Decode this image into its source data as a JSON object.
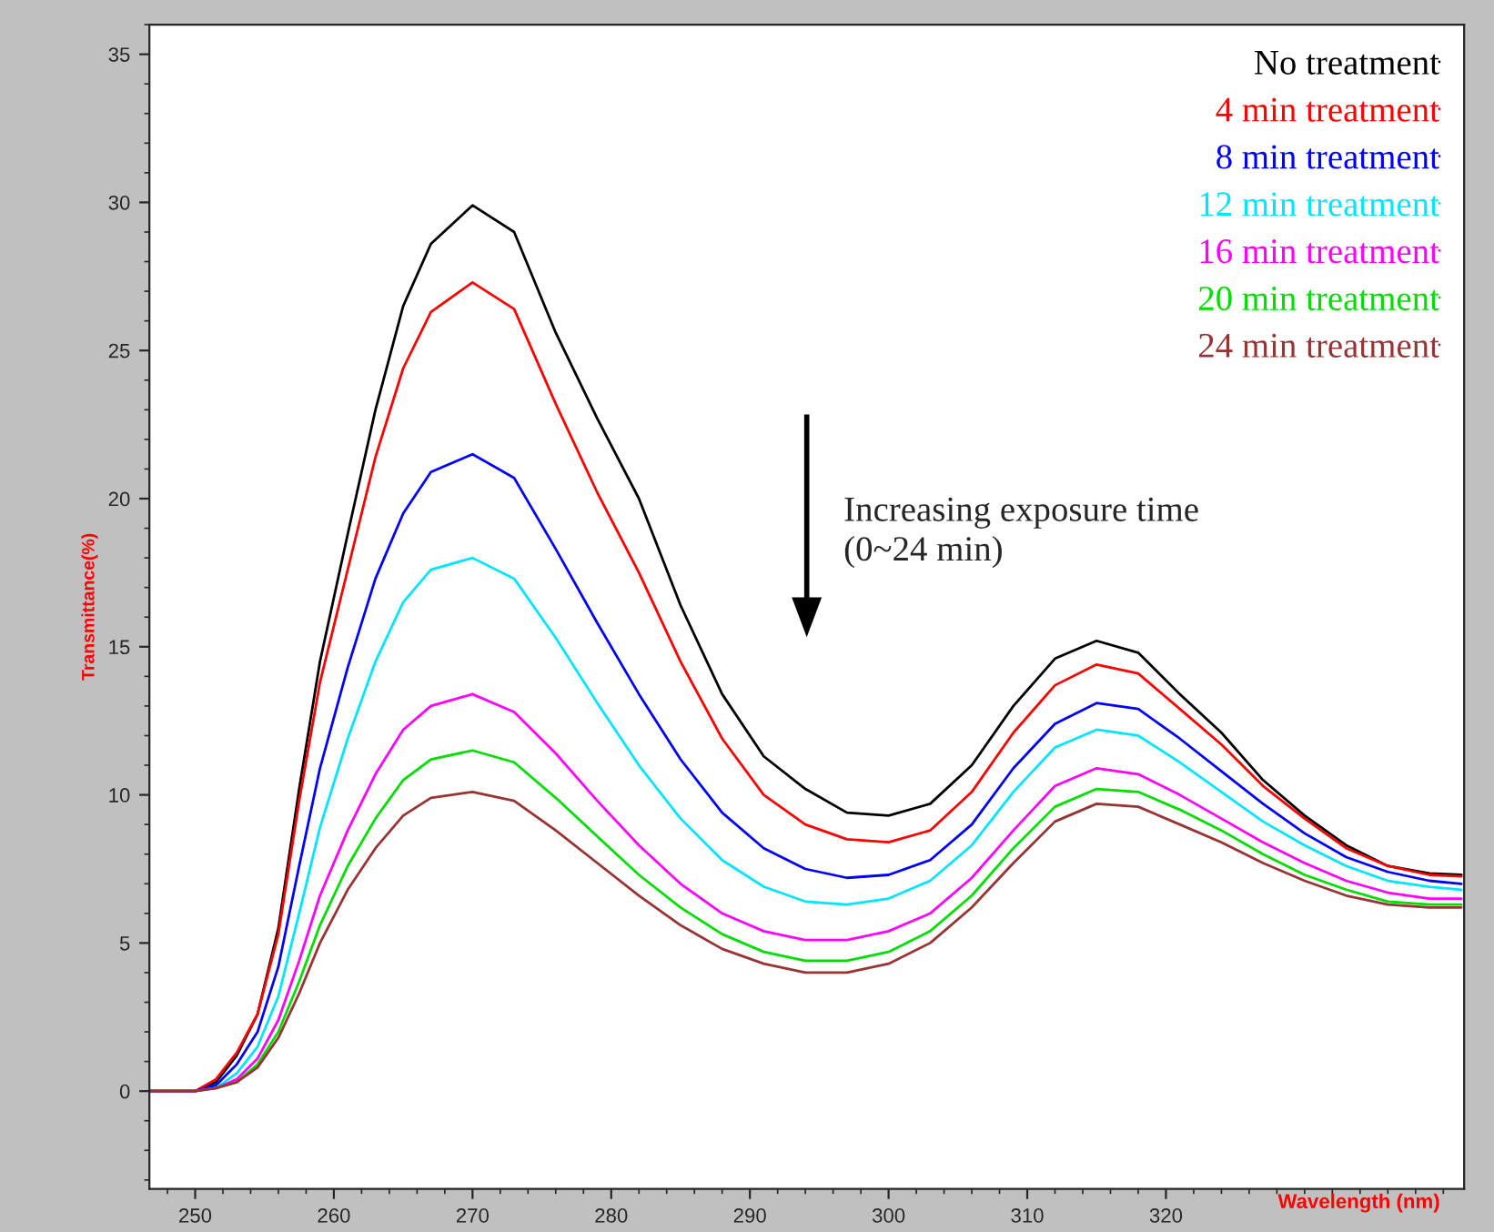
{
  "chart_data": {
    "type": "line",
    "xlabel": "Wavelength (nm)",
    "ylabel": "Transmittance(%)",
    "x": [
      246.7,
      250,
      251.5,
      253,
      254.5,
      256,
      257.5,
      259,
      261,
      263,
      265,
      267,
      270,
      273,
      276,
      279,
      282,
      285,
      288,
      291,
      294,
      297,
      300,
      303,
      306,
      309,
      312,
      315,
      318,
      321,
      324,
      327,
      330,
      333,
      336,
      339,
      341.3
    ],
    "series": [
      {
        "name": "No treatment",
        "color": "#000000",
        "values": [
          0,
          0,
          0.3,
          1.2,
          2.6,
          5.5,
          10.2,
          14.5,
          18.8,
          23.0,
          26.5,
          28.6,
          29.9,
          29.0,
          25.6,
          22.7,
          20.0,
          16.4,
          13.4,
          11.3,
          10.2,
          9.4,
          9.3,
          9.7,
          11.0,
          13.0,
          14.6,
          15.2,
          14.8,
          13.4,
          12.1,
          10.5,
          9.3,
          8.3,
          7.6,
          7.35,
          7.3
        ]
      },
      {
        "name": "4 min treatment",
        "color": "#ff0000",
        "values": [
          0,
          0,
          0.4,
          1.3,
          2.6,
          5.3,
          9.8,
          13.8,
          17.6,
          21.4,
          24.4,
          26.3,
          27.3,
          26.4,
          23.2,
          20.2,
          17.5,
          14.5,
          11.9,
          10.0,
          9.0,
          8.5,
          8.4,
          8.8,
          10.1,
          12.1,
          13.7,
          14.4,
          14.1,
          12.9,
          11.7,
          10.3,
          9.2,
          8.2,
          7.6,
          7.3,
          7.25
        ]
      },
      {
        "name": "8 min treatment",
        "color": "#0000ff",
        "values": [
          0,
          0,
          0.2,
          0.9,
          2.0,
          4.2,
          7.6,
          10.9,
          14.3,
          17.3,
          19.5,
          20.9,
          21.5,
          20.7,
          18.3,
          15.8,
          13.4,
          11.2,
          9.4,
          8.2,
          7.5,
          7.2,
          7.3,
          7.8,
          9.0,
          10.9,
          12.4,
          13.1,
          12.9,
          11.9,
          10.8,
          9.7,
          8.7,
          7.9,
          7.4,
          7.1,
          7.0
        ]
      },
      {
        "name": "12 min treatment",
        "color": "#00e5ff",
        "values": [
          0,
          0,
          0.1,
          0.6,
          1.5,
          3.2,
          6.0,
          8.9,
          11.9,
          14.5,
          16.5,
          17.6,
          18.0,
          17.3,
          15.3,
          13.1,
          11.0,
          9.2,
          7.8,
          6.9,
          6.4,
          6.3,
          6.5,
          7.1,
          8.3,
          10.1,
          11.6,
          12.2,
          12.0,
          11.1,
          10.1,
          9.1,
          8.3,
          7.6,
          7.1,
          6.9,
          6.8
        ]
      },
      {
        "name": "16 min treatment",
        "color": "#ff00ff",
        "values": [
          0,
          0,
          0.1,
          0.4,
          1.1,
          2.4,
          4.4,
          6.6,
          8.8,
          10.7,
          12.2,
          13.0,
          13.4,
          12.8,
          11.4,
          9.8,
          8.3,
          7.0,
          6.0,
          5.4,
          5.1,
          5.1,
          5.4,
          6.0,
          7.2,
          8.8,
          10.3,
          10.9,
          10.7,
          10.0,
          9.2,
          8.4,
          7.7,
          7.1,
          6.7,
          6.5,
          6.5
        ]
      },
      {
        "name": "20 min treatment",
        "color": "#00dd00",
        "values": [
          null,
          null,
          0.1,
          0.3,
          0.9,
          2.0,
          3.7,
          5.6,
          7.6,
          9.2,
          10.5,
          11.2,
          11.5,
          11.1,
          9.9,
          8.6,
          7.3,
          6.2,
          5.3,
          4.7,
          4.4,
          4.4,
          4.7,
          5.4,
          6.6,
          8.2,
          9.6,
          10.2,
          10.1,
          9.5,
          8.8,
          8.0,
          7.3,
          6.8,
          6.4,
          6.3,
          6.3
        ]
      },
      {
        "name": "24 min treatment",
        "color": "#993333",
        "values": [
          0,
          0,
          0.1,
          0.3,
          0.8,
          1.8,
          3.3,
          5.0,
          6.8,
          8.2,
          9.3,
          9.9,
          10.1,
          9.8,
          8.8,
          7.7,
          6.6,
          5.6,
          4.8,
          4.3,
          4.0,
          4.0,
          4.3,
          5.0,
          6.2,
          7.7,
          9.1,
          9.7,
          9.6,
          9.0,
          8.4,
          7.7,
          7.1,
          6.6,
          6.3,
          6.2,
          6.2
        ]
      }
    ],
    "annotations": [
      "Increasing exposure time\n(0~24 min)"
    ],
    "xlim": [
      246.7,
      341.5
    ],
    "xticks": [
      250,
      260,
      270,
      280,
      290,
      300,
      310,
      320
    ],
    "ylim": [
      -3.3,
      36
    ],
    "yticks": [
      0,
      5,
      10,
      15,
      20,
      25,
      30,
      35
    ],
    "grid": false,
    "legend": "top right",
    "marker": "none",
    "line_style": "solid"
  }
}
